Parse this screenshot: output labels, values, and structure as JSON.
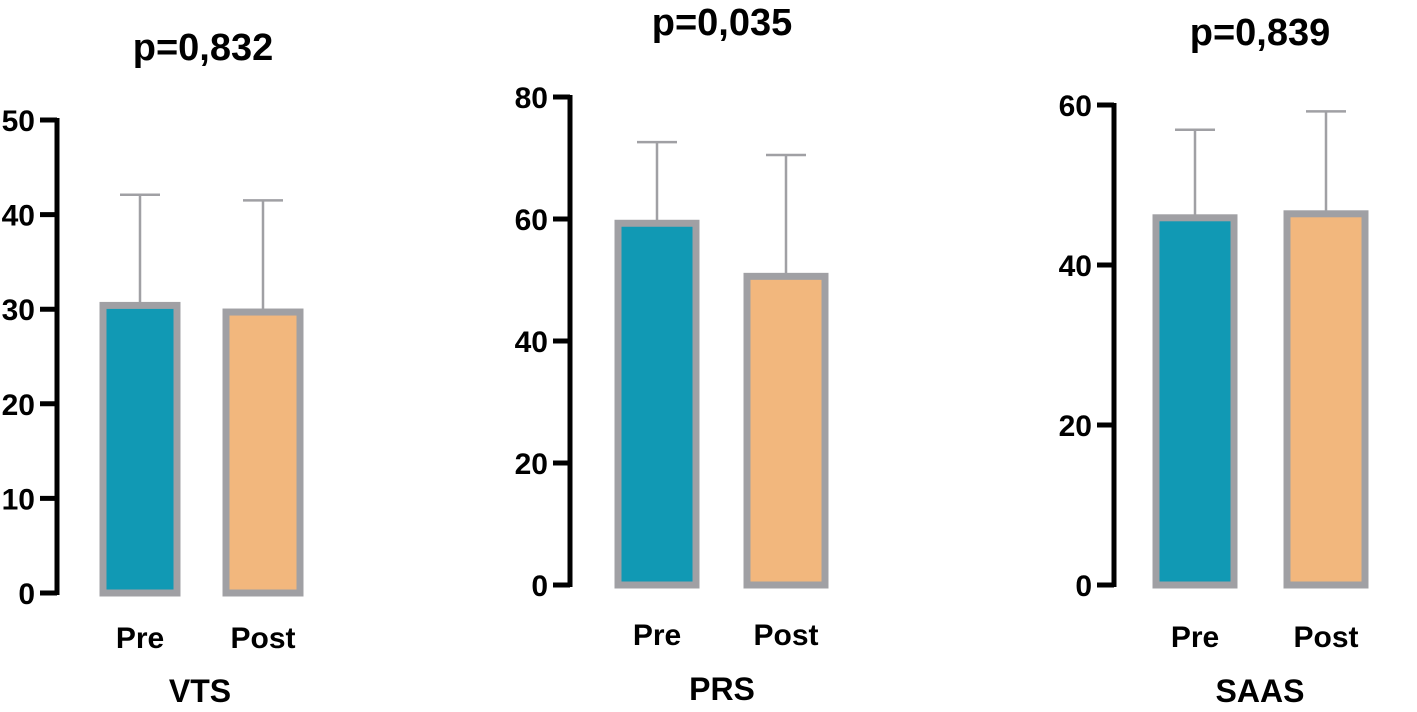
{
  "chart_data": [
    {
      "type": "bar",
      "title": "p=0,832",
      "xlabel": "VTS",
      "ylabel": "",
      "categories": [
        "Pre",
        "Post"
      ],
      "values": [
        30.4,
        29.7
      ],
      "error_upper": [
        42.1,
        41.5
      ],
      "ylim": [
        0,
        50
      ],
      "yticks": [
        0,
        10,
        20,
        30,
        40,
        50
      ],
      "colors": [
        "#1199b4",
        "#f2b77d"
      ],
      "outline_color": "#a0a0a4"
    },
    {
      "type": "bar",
      "title": "p=0,035",
      "xlabel": "PRS",
      "ylabel": "",
      "categories": [
        "Pre",
        "Post"
      ],
      "values": [
        59.3,
        50.6
      ],
      "error_upper": [
        72.6,
        70.5
      ],
      "ylim": [
        0,
        80
      ],
      "yticks": [
        0,
        20,
        40,
        60,
        80
      ],
      "colors": [
        "#1199b4",
        "#f2b77d"
      ],
      "outline_color": "#a0a0a4"
    },
    {
      "type": "bar",
      "title": "p=0,839",
      "xlabel": "SAAS",
      "ylabel": "",
      "categories": [
        "Pre",
        "Post"
      ],
      "values": [
        45.9,
        46.4
      ],
      "error_upper": [
        56.9,
        59.2
      ],
      "ylim": [
        0,
        60
      ],
      "yticks": [
        0,
        20,
        40,
        60
      ],
      "colors": [
        "#1199b4",
        "#f2b77d"
      ],
      "outline_color": "#a0a0a4"
    }
  ]
}
